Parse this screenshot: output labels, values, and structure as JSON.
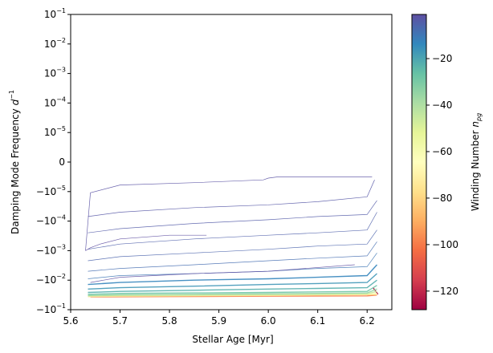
{
  "chart_data": {
    "type": "line",
    "title": "",
    "xlabel": "Stellar Age [Myr]",
    "ylabel": "Damping Mode Frequency d⁻¹",
    "colorbar_label": "Winding Number n_pg",
    "xlim": [
      5.6,
      6.25
    ],
    "x_ticks": [
      "5.6",
      "5.7",
      "5.8",
      "5.9",
      "6.0",
      "6.1",
      "6.2"
    ],
    "y_scale": "symlog",
    "y_ticks": [
      {
        "base": "−10",
        "exp": "−1"
      },
      {
        "base": "−10",
        "exp": "−2"
      },
      {
        "base": "−10",
        "exp": "−3"
      },
      {
        "base": "−10",
        "exp": "−4"
      },
      {
        "base": "−10",
        "exp": "−5"
      },
      {
        "base": "0",
        "exp": ""
      },
      {
        "base": "10",
        "exp": "−5"
      },
      {
        "base": "10",
        "exp": "−4"
      },
      {
        "base": "10",
        "exp": "−3"
      },
      {
        "base": "10",
        "exp": "−2"
      },
      {
        "base": "10",
        "exp": "−1"
      }
    ],
    "colorbar_ticks": [
      "−20",
      "−40",
      "−60",
      "−80",
      "−100",
      "−120"
    ],
    "colorbar_range": [
      -128,
      -1
    ],
    "colormap": "Spectral",
    "grid": false,
    "series": [
      {
        "winding": -1,
        "x": [
          5.63,
          5.64,
          5.66,
          5.7,
          5.8,
          5.875
        ],
        "y": [
          -0.001,
          -0.0008,
          -0.0006,
          -0.0004,
          -0.0003,
          -0.0003
        ]
      },
      {
        "winding": -1,
        "x": [
          5.64,
          5.7,
          5.85,
          6.0,
          6.175
        ],
        "y": [
          -0.012,
          -0.008,
          -0.006,
          -0.005,
          -0.003
        ]
      },
      {
        "winding": -2,
        "x": [
          5.63,
          5.64,
          5.7,
          5.85,
          5.99,
          6.0,
          6.02,
          6.15,
          6.21
        ],
        "y": [
          -0.001,
          -1.1e-05,
          -6e-06,
          -5e-06,
          -4e-06,
          -3.5e-06,
          -2.8e-06,
          -2.3e-06,
          -1.9e-06
        ]
      },
      {
        "winding": -3,
        "x": [
          5.635,
          5.7,
          5.85,
          6.0,
          6.1,
          6.2,
          6.215
        ],
        "y": [
          -7e-05,
          -5e-05,
          -3.5e-05,
          -2.8e-05,
          -2.2e-05,
          -1.5e-05,
          -4e-06
        ]
      },
      {
        "winding": -4,
        "x": [
          5.635,
          5.7,
          5.85,
          6.0,
          6.1,
          6.2,
          6.22
        ],
        "y": [
          -0.00025,
          -0.00018,
          -0.00012,
          -9e-05,
          -7e-05,
          -6e-05,
          -2e-05
        ]
      },
      {
        "winding": -5,
        "x": [
          5.635,
          5.7,
          5.85,
          6.0,
          6.1,
          6.2,
          6.22
        ],
        "y": [
          -0.0009,
          -0.0006,
          -0.0004,
          -0.0003,
          -0.00025,
          -0.0002,
          -5e-05
        ]
      },
      {
        "winding": -6,
        "x": [
          5.635,
          5.7,
          5.85,
          6.0,
          6.1,
          6.2,
          6.22
        ],
        "y": [
          -0.0022,
          -0.0016,
          -0.0012,
          -0.0009,
          -0.0007,
          -0.0006,
          -0.0002
        ]
      },
      {
        "winding": -8,
        "x": [
          5.635,
          5.7,
          5.85,
          6.0,
          6.1,
          6.2,
          6.22
        ],
        "y": [
          -0.005,
          -0.004,
          -0.003,
          -0.0022,
          -0.0018,
          -0.0015,
          -0.0005
        ]
      },
      {
        "winding": -10,
        "x": [
          5.635,
          5.7,
          5.85,
          6.0,
          6.1,
          6.2,
          6.22
        ],
        "y": [
          -0.009,
          -0.007,
          -0.006,
          -0.005,
          -0.004,
          -0.0035,
          -0.0012
        ]
      },
      {
        "winding": -13,
        "x": [
          5.635,
          5.7,
          5.85,
          6.0,
          6.1,
          6.2,
          6.22
        ],
        "y": [
          -0.014,
          -0.012,
          -0.01,
          -0.009,
          -0.008,
          -0.007,
          -0.003
        ]
      },
      {
        "winding": -17,
        "x": [
          5.635,
          5.7,
          5.85,
          6.0,
          6.1,
          6.2,
          6.22
        ],
        "y": [
          -0.02,
          -0.018,
          -0.016,
          -0.014,
          -0.013,
          -0.012,
          -0.006
        ]
      },
      {
        "winding": -22,
        "x": [
          5.635,
          5.7,
          5.85,
          6.0,
          6.1,
          6.2,
          6.22
        ],
        "y": [
          -0.026,
          -0.024,
          -0.022,
          -0.02,
          -0.019,
          -0.018,
          -0.01
        ]
      },
      {
        "winding": -28,
        "x": [
          5.635,
          5.7,
          5.85,
          6.0,
          6.1,
          6.2,
          6.22
        ],
        "y": [
          -0.03,
          -0.028,
          -0.027,
          -0.026,
          -0.025,
          -0.024,
          -0.015
        ]
      },
      {
        "winding": -35,
        "x": [
          5.635,
          5.7,
          5.85,
          6.0,
          6.1,
          6.2,
          6.22
        ],
        "y": [
          -0.033,
          -0.031,
          -0.03,
          -0.029,
          -0.028,
          -0.027,
          -0.02
        ]
      },
      {
        "winding": -45,
        "x": [
          5.635,
          5.7,
          5.85,
          6.0,
          6.1,
          6.2,
          6.22
        ],
        "y": [
          -0.034,
          -0.033,
          -0.032,
          -0.031,
          -0.03,
          -0.029,
          -0.024
        ]
      },
      {
        "winding": -60,
        "x": [
          5.635,
          5.7,
          5.85,
          6.0,
          6.1,
          6.2,
          6.22
        ],
        "y": [
          -0.035,
          -0.034,
          -0.033,
          -0.032,
          -0.031,
          -0.03,
          -0.028
        ]
      },
      {
        "winding": -80,
        "x": [
          5.635,
          5.7,
          5.85,
          6.0,
          6.1,
          6.2,
          6.22
        ],
        "y": [
          -0.036,
          -0.035,
          -0.034,
          -0.033,
          -0.032,
          -0.031,
          -0.031
        ]
      },
      {
        "winding": -100,
        "x": [
          5.64,
          5.8,
          6.0,
          6.2,
          6.22
        ],
        "y": [
          -0.037,
          -0.036,
          -0.035,
          -0.034,
          -0.032
        ]
      },
      {
        "winding": -125,
        "x": [
          6.212,
          6.222
        ],
        "y": [
          -0.018,
          -0.03
        ]
      }
    ]
  }
}
